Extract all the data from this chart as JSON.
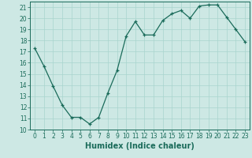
{
  "x": [
    0,
    1,
    2,
    3,
    4,
    5,
    6,
    7,
    8,
    9,
    10,
    11,
    12,
    13,
    14,
    15,
    16,
    17,
    18,
    19,
    20,
    21,
    22,
    23
  ],
  "y": [
    17.3,
    15.7,
    13.9,
    12.2,
    11.1,
    11.1,
    10.5,
    11.1,
    13.3,
    15.3,
    18.4,
    19.7,
    18.5,
    18.5,
    19.8,
    20.4,
    20.7,
    20.0,
    21.1,
    21.2,
    21.2,
    20.1,
    19.0,
    17.9
  ],
  "xlabel": "Humidex (Indice chaleur)",
  "ylim": [
    10,
    21.5
  ],
  "xlim": [
    -0.5,
    23.5
  ],
  "yticks": [
    10,
    11,
    12,
    13,
    14,
    15,
    16,
    17,
    18,
    19,
    20,
    21
  ],
  "xticks": [
    0,
    1,
    2,
    3,
    4,
    5,
    6,
    7,
    8,
    9,
    10,
    11,
    12,
    13,
    14,
    15,
    16,
    17,
    18,
    19,
    20,
    21,
    22,
    23
  ],
  "line_color": "#1a6b5a",
  "bg_color": "#cde8e4",
  "grid_color": "#a8d4ce",
  "tick_label_fontsize": 5.5,
  "xlabel_fontsize": 7.0
}
